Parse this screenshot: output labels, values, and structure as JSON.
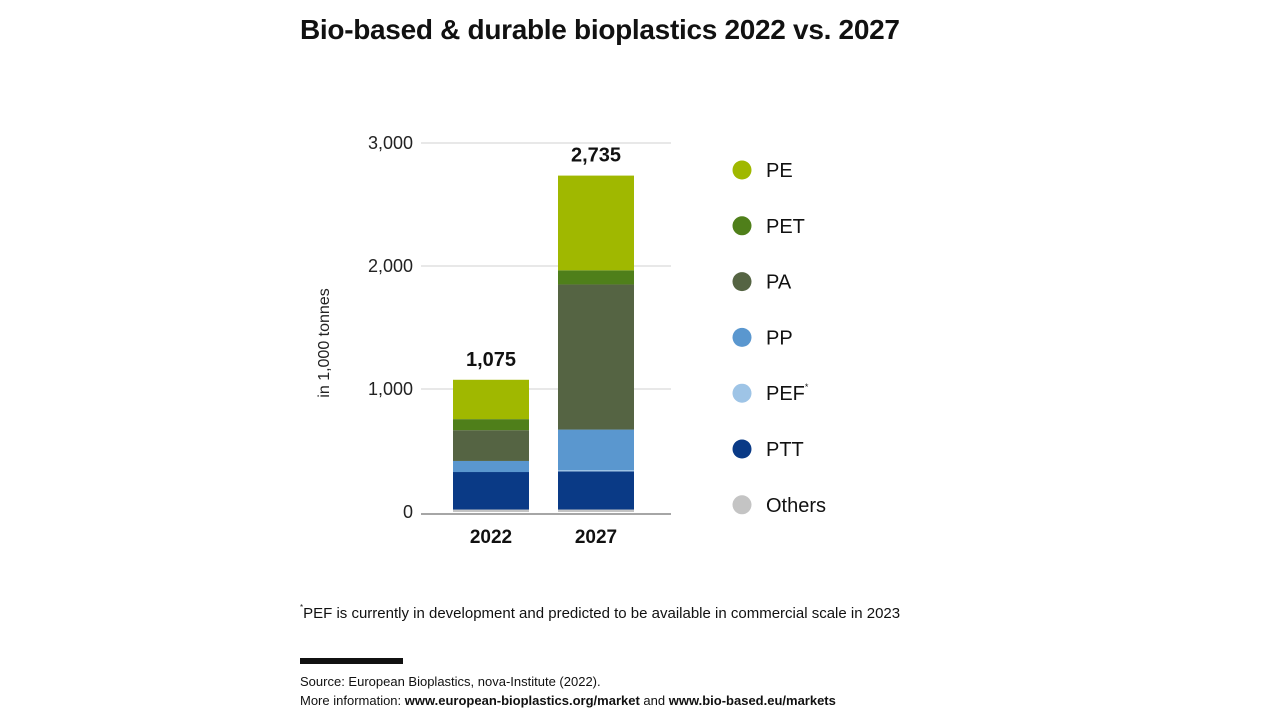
{
  "title": "Bio-based & durable bioplastics 2022 vs. 2027",
  "footnote": {
    "marker": "*",
    "text": "PEF is currently in development and predicted to be available in commercial scale in 2023"
  },
  "source": {
    "line1": "Source: European Bioplastics, nova-Institute (2022).",
    "more_label": "More information:",
    "link1": "www.european-bioplastics.org/market",
    "and_text": "and",
    "link2": "www.bio-based.eu/markets"
  },
  "chart_data": {
    "type": "bar",
    "stacked": true,
    "title": "Bio-based & durable bioplastics 2022 vs. 2027",
    "xlabel": "",
    "ylabel": "in 1,000 tonnes",
    "ylim": [
      0,
      3000
    ],
    "yticks": [
      0,
      1000,
      2000,
      3000
    ],
    "ytick_labels": [
      "0",
      "1,000",
      "2,000",
      "3,000"
    ],
    "grid": true,
    "legend_position": "right",
    "categories": [
      "2022",
      "2027"
    ],
    "totals": [
      1075,
      2735
    ],
    "total_labels": [
      "1,075",
      "2,735"
    ],
    "series": [
      {
        "name": "Others",
        "color": "#c4c4c4",
        "values": [
          20,
          20
        ]
      },
      {
        "name": "PTT",
        "color": "#0a3a86",
        "values": [
          305,
          310
        ]
      },
      {
        "name": "PEF",
        "marker": "*",
        "color": "#9ec4e6",
        "values": [
          0,
          10
        ]
      },
      {
        "name": "PP",
        "color": "#5a97cf",
        "values": [
          90,
          330
        ]
      },
      {
        "name": "PA",
        "color": "#556443",
        "values": [
          250,
          1180
        ]
      },
      {
        "name": "PET",
        "color": "#4f7f1a",
        "values": [
          90,
          115
        ]
      },
      {
        "name": "PE",
        "color": "#a0b800",
        "values": [
          320,
          770
        ]
      }
    ],
    "legend_order": [
      "PE",
      "PET",
      "PA",
      "PP",
      "PEF",
      "PTT",
      "Others"
    ]
  }
}
